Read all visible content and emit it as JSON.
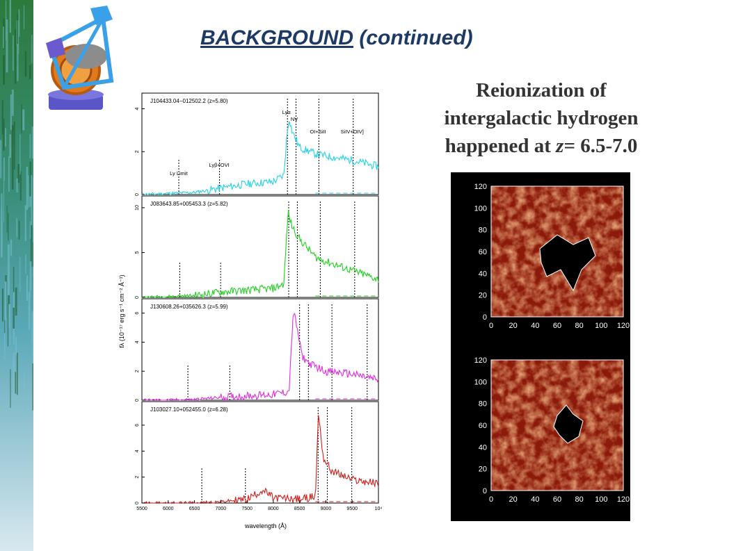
{
  "slide": {
    "title_main": "BACKGROUND",
    "title_rest": " (continued)",
    "subtitle_line1": "Reionization  of",
    "subtitle_line2": "intergalactic hydrogen",
    "subtitle_line3_prefix": "happened at ",
    "subtitle_line3_var": "z",
    "subtitle_line3_rest": "= 6.5-7.0"
  },
  "spectra_figure": {
    "ylabel": "fλ (10⁻¹⁷ erg s⁻¹ cm⁻² Å⁻¹)",
    "xlabel": "wavelength (Å)",
    "x_ticks": [
      "5500",
      "6000",
      "6500",
      "7000",
      "7500",
      "8000",
      "8500",
      "9000",
      "9500",
      "10⁴"
    ],
    "line_labels": [
      "Ly Limit",
      "Lyβ+OVI",
      "Lyα",
      "NV",
      "OI+SiII",
      "SiIV+OIV]"
    ],
    "panels": [
      {
        "name": "J104433.04−012502.2 (z=5.80)",
        "color": "#22d3e6",
        "yticks": [
          "0",
          "2",
          "4"
        ]
      },
      {
        "name": "J083643.85+005453.3 (z=5.82)",
        "color": "#1fd01f",
        "yticks": [
          "0",
          "5",
          "10"
        ]
      },
      {
        "name": "J130608.26+035626.3 (z=5.99)",
        "color": "#e22ae2",
        "yticks": [
          "0",
          "2",
          "4",
          "6"
        ]
      },
      {
        "name": "J103027.10+052455.0 (z=6.28)",
        "color": "#d21b1b",
        "yticks": [
          "0",
          "2",
          "4",
          "6"
        ]
      }
    ]
  },
  "simulation": {
    "ticks": [
      "0",
      "20",
      "40",
      "60",
      "80",
      "100",
      "120"
    ]
  },
  "chart_data": {
    "type": "line",
    "xlabel": "wavelength (Å)",
    "ylabel": "fλ (10⁻¹⁷ erg s⁻¹ cm⁻² Å⁻¹)",
    "xlim": [
      5500,
      10000
    ],
    "series": [
      {
        "name": "J104433.04−012502.2 (z=5.80)",
        "x": [
          5500,
          6000,
          6500,
          7000,
          7500,
          8000,
          8200,
          8250,
          8300,
          8350,
          8500,
          8800,
          9000,
          9500,
          10000
        ],
        "values": [
          0,
          0.05,
          0.1,
          0.3,
          0.5,
          0.6,
          0.9,
          2.5,
          3.6,
          3.0,
          2.2,
          1.9,
          1.8,
          1.6,
          1.3
        ]
      },
      {
        "name": "J083643.85+005453.3 (z=5.82)",
        "x": [
          5500,
          6000,
          6500,
          7000,
          7500,
          8000,
          8200,
          8280,
          8350,
          8500,
          8800,
          9000,
          9500,
          10000
        ],
        "values": [
          0,
          0.1,
          0.2,
          0.6,
          0.8,
          1.0,
          1.5,
          9.5,
          8.0,
          6.5,
          4.5,
          4.0,
          3.0,
          2.0
        ]
      },
      {
        "name": "J130608.26+035626.3 (z=5.99)",
        "x": [
          5500,
          6000,
          6500,
          7000,
          7500,
          8000,
          8300,
          8380,
          8450,
          8550,
          8700,
          9000,
          9500,
          10000
        ],
        "values": [
          0,
          0,
          0.05,
          0.2,
          0.3,
          0.4,
          0.6,
          6.2,
          5.0,
          3.0,
          2.5,
          2.0,
          1.8,
          1.4
        ]
      },
      {
        "name": "J103027.10+052455.0 (z=6.28)",
        "x": [
          5500,
          6000,
          6500,
          7000,
          7500,
          7800,
          8000,
          8500,
          8800,
          8860,
          8950,
          9100,
          9500,
          10000
        ],
        "values": [
          0,
          0,
          0,
          0.1,
          0.3,
          1.0,
          0.4,
          0.3,
          0.5,
          7.0,
          3.5,
          2.5,
          1.8,
          1.5
        ]
      }
    ],
    "xticks": [
      5500,
      6000,
      6500,
      7000,
      7500,
      8000,
      8500,
      9000,
      9500,
      10000
    ]
  },
  "colors": {
    "title": "#1d3a66",
    "subtitle": "#333333"
  }
}
